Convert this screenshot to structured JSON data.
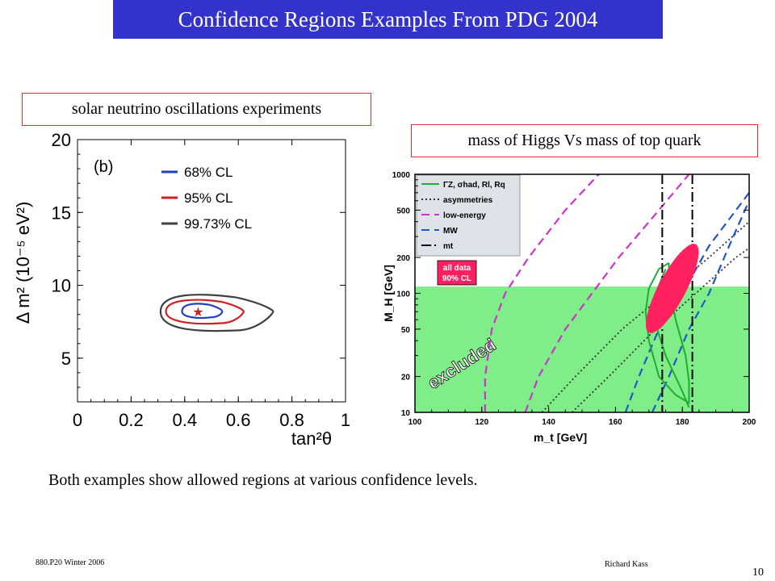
{
  "title": "Confidence Regions Examples From PDG 2004",
  "left_label": "solar neutrino oscillations experiments",
  "right_label": "mass of Higgs Vs mass of top quark",
  "caption": "Both examples show allowed regions at various confidence levels.",
  "footer_left": "880.P20 Winter 2006",
  "footer_center": "Richard Kass",
  "page_number": "10",
  "chart_data": [
    {
      "type": "contour",
      "panel_tag": "(b)",
      "xlabel": "tan²θ",
      "ylabel": "Δ m² (10⁻⁵ eV²)",
      "xlim": [
        0,
        1
      ],
      "ylim": [
        2,
        20
      ],
      "x_ticks": [
        0,
        0.2,
        0.4,
        0.6,
        0.8,
        1
      ],
      "x_tick_labels": [
        "0",
        "0.2",
        "0.4",
        "0.6",
        "0.8",
        "1"
      ],
      "y_ticks": [
        5,
        10,
        15,
        20
      ],
      "y_tick_labels": [
        "5",
        "10",
        "15",
        "20"
      ],
      "best_fit": {
        "x": 0.45,
        "y": 8.2
      },
      "series": [
        {
          "name": "68% CL",
          "color": "#2040c0",
          "x_range": [
            0.39,
            0.54
          ],
          "y_range": [
            7.8,
            8.8
          ]
        },
        {
          "name": "95% CL",
          "color": "#d02020",
          "x_range": [
            0.33,
            0.62
          ],
          "y_range": [
            7.4,
            9.1
          ]
        },
        {
          "name": "99.73% CL",
          "color": "#404040",
          "x_range": [
            0.31,
            0.73
          ],
          "y_range": [
            6.9,
            9.5
          ]
        }
      ],
      "grid": false,
      "legend": "top-right"
    },
    {
      "type": "contour",
      "xlabel": "m_t [GeV]",
      "ylabel": "M_H [GeV]",
      "xlim": [
        100,
        200
      ],
      "ylim": [
        10,
        1000
      ],
      "y_scale": "log",
      "x_tick_labels": [
        "100",
        "120",
        "140",
        "160",
        "180",
        "200"
      ],
      "y_tick_labels": [
        "10",
        "20",
        "50",
        "100",
        "200",
        "500",
        "1000"
      ],
      "excluded_region": {
        "label": "excluded",
        "y_max": 114,
        "color": "#80ee88"
      },
      "annotation": {
        "line1": "all data",
        "line2": "90% CL",
        "color": "#ff2060"
      },
      "legend_entries": [
        {
          "label": "ΓZ, σhad, Rl, Rq",
          "color": "#22aa33",
          "style": "solid"
        },
        {
          "label": "asymmetries",
          "color": "#333333",
          "style": "dotted"
        },
        {
          "label": "low-energy",
          "color": "#cc33cc",
          "style": "dashed"
        },
        {
          "label": "MW",
          "color": "#2255cc",
          "style": "dashed"
        },
        {
          "label": "mt",
          "color": "#000000",
          "style": "dashdot"
        }
      ],
      "mt_band": [
        174,
        183
      ],
      "all_data_ellipse": {
        "x_center": 177,
        "y_center": 110
      },
      "legend": "top-left"
    }
  ]
}
